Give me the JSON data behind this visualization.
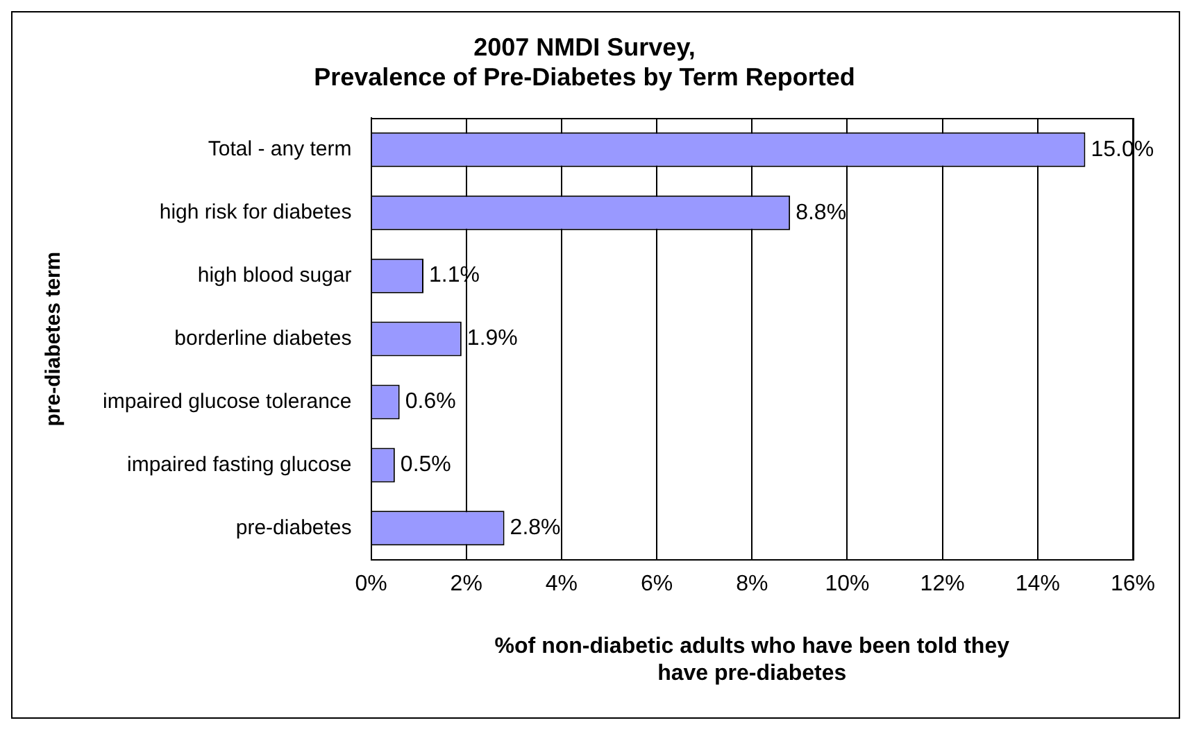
{
  "chart_data": {
    "type": "bar",
    "orientation": "horizontal",
    "title": "2007 NMDI Survey,\nPrevalence of Pre-Diabetes by Term Reported",
    "xlabel": "%of non-diabetic adults who have been told they\nhave pre-diabetes",
    "ylabel": "pre-diabetes term",
    "categories": [
      "Total - any term",
      "high risk for diabetes",
      "high blood sugar",
      "borderline diabetes",
      "impaired glucose tolerance",
      "impaired fasting glucose",
      "pre-diabetes"
    ],
    "values": [
      15.0,
      8.8,
      1.1,
      1.9,
      0.6,
      0.5,
      2.8
    ],
    "value_labels": [
      "15.0%",
      "8.8%",
      "1.1%",
      "1.9%",
      "0.6%",
      "0.5%",
      "2.8%"
    ],
    "color": "#9999ff",
    "xlim": [
      0,
      16
    ],
    "xticks": [
      {
        "value": 0,
        "label": "0%"
      },
      {
        "value": 2,
        "label": "2%"
      },
      {
        "value": 4,
        "label": "4%"
      },
      {
        "value": 6,
        "label": "6%"
      },
      {
        "value": 8,
        "label": "8%"
      },
      {
        "value": 10,
        "label": "10%"
      },
      {
        "value": 12,
        "label": "12%"
      },
      {
        "value": 14,
        "label": "14%"
      },
      {
        "value": 16,
        "label": "16%"
      }
    ],
    "grid": "x",
    "legend": false
  }
}
